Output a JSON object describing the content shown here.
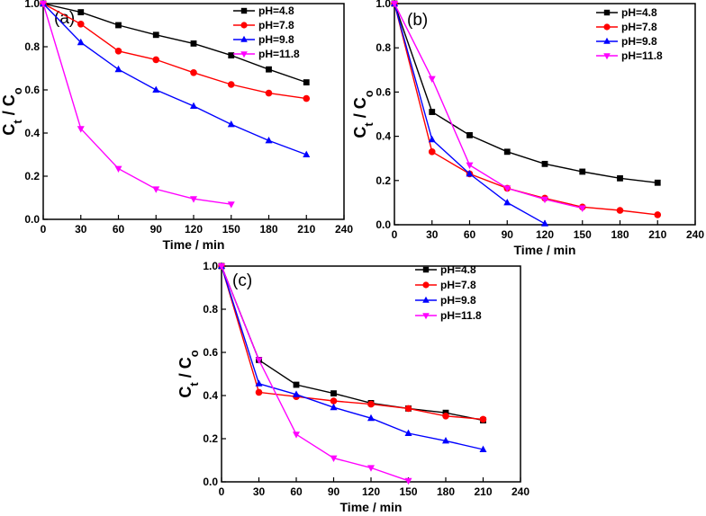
{
  "colors": {
    "pH_4_8": "#000000",
    "pH_7_8": "#ff0000",
    "pH_9_8": "#0000ff",
    "pH_11_8": "#ff00ff"
  },
  "chart_data": [
    {
      "type": "line",
      "panel_label": "(a)",
      "xlabel": "Time / min",
      "ylabel": "Ct / Co",
      "xlim": [
        0,
        240
      ],
      "ylim": [
        0,
        1.0
      ],
      "xticks": [
        0,
        30,
        60,
        90,
        120,
        150,
        180,
        210,
        240
      ],
      "yticks": [
        0.0,
        0.2,
        0.4,
        0.6,
        0.8,
        1.0
      ],
      "legend_position": "top-right",
      "series": [
        {
          "name": "pH=4.8",
          "marker": "square",
          "x": [
            0,
            30,
            60,
            90,
            120,
            150,
            180,
            210
          ],
          "values": [
            1.0,
            0.96,
            0.9,
            0.855,
            0.815,
            0.76,
            0.695,
            0.635
          ]
        },
        {
          "name": "pH=7.8",
          "marker": "circle",
          "x": [
            0,
            30,
            60,
            90,
            120,
            150,
            180,
            210
          ],
          "values": [
            1.0,
            0.905,
            0.78,
            0.74,
            0.68,
            0.625,
            0.585,
            0.56
          ]
        },
        {
          "name": "pH=9.8",
          "marker": "triangle-up",
          "x": [
            0,
            30,
            60,
            90,
            120,
            150,
            180,
            210
          ],
          "values": [
            1.0,
            0.82,
            0.695,
            0.6,
            0.525,
            0.44,
            0.365,
            0.3
          ]
        },
        {
          "name": "pH=11.8",
          "marker": "triangle-down",
          "x": [
            0,
            30,
            60,
            90,
            120,
            150
          ],
          "values": [
            1.0,
            0.42,
            0.235,
            0.14,
            0.095,
            0.07
          ]
        }
      ]
    },
    {
      "type": "line",
      "panel_label": "(b)",
      "xlabel": "Time / min",
      "ylabel": "Ct / Co",
      "xlim": [
        0,
        240
      ],
      "ylim": [
        0,
        1.0
      ],
      "xticks": [
        0,
        30,
        60,
        90,
        120,
        150,
        180,
        210,
        240
      ],
      "yticks": [
        0.0,
        0.2,
        0.4,
        0.6,
        0.8,
        1.0
      ],
      "legend_position": "top-right",
      "series": [
        {
          "name": "pH=4.8",
          "marker": "square",
          "x": [
            0,
            30,
            60,
            90,
            120,
            150,
            180,
            210
          ],
          "values": [
            1.0,
            0.51,
            0.405,
            0.33,
            0.275,
            0.24,
            0.21,
            0.19
          ]
        },
        {
          "name": "pH=7.8",
          "marker": "circle",
          "x": [
            0,
            30,
            60,
            90,
            120,
            150,
            180,
            210
          ],
          "values": [
            1.0,
            0.33,
            0.23,
            0.165,
            0.12,
            0.08,
            0.065,
            0.045
          ]
        },
        {
          "name": "pH=9.8",
          "marker": "triangle-up",
          "x": [
            0,
            30,
            60,
            90,
            120
          ],
          "values": [
            1.0,
            0.385,
            0.23,
            0.1,
            0.005
          ]
        },
        {
          "name": "pH=11.8",
          "marker": "triangle-down",
          "x": [
            0,
            30,
            60,
            90,
            120,
            150
          ],
          "values": [
            1.0,
            0.66,
            0.27,
            0.165,
            0.115,
            0.075
          ]
        }
      ]
    },
    {
      "type": "line",
      "panel_label": "(c)",
      "xlabel": "Time / min",
      "ylabel": "Ct / Co",
      "xlim": [
        0,
        240
      ],
      "ylim": [
        0,
        1.0
      ],
      "xticks": [
        0,
        30,
        60,
        90,
        120,
        150,
        180,
        210,
        240
      ],
      "yticks": [
        0.0,
        0.2,
        0.4,
        0.6,
        0.8,
        1.0
      ],
      "legend_position": "top-right",
      "series": [
        {
          "name": "pH=4.8",
          "marker": "square",
          "x": [
            0,
            30,
            60,
            90,
            120,
            150,
            180,
            210
          ],
          "values": [
            1.0,
            0.565,
            0.45,
            0.41,
            0.365,
            0.34,
            0.32,
            0.285
          ]
        },
        {
          "name": "pH=7.8",
          "marker": "circle",
          "x": [
            0,
            30,
            60,
            90,
            120,
            150,
            180,
            210
          ],
          "values": [
            1.0,
            0.415,
            0.395,
            0.375,
            0.36,
            0.34,
            0.305,
            0.29
          ]
        },
        {
          "name": "pH=9.8",
          "marker": "triangle-up",
          "x": [
            0,
            30,
            60,
            90,
            120,
            150,
            180,
            210
          ],
          "values": [
            1.0,
            0.455,
            0.405,
            0.345,
            0.295,
            0.225,
            0.19,
            0.15
          ]
        },
        {
          "name": "pH=11.8",
          "marker": "triangle-down",
          "x": [
            0,
            30,
            60,
            90,
            120,
            150
          ],
          "values": [
            1.0,
            0.565,
            0.22,
            0.11,
            0.065,
            0.005
          ]
        }
      ]
    }
  ]
}
